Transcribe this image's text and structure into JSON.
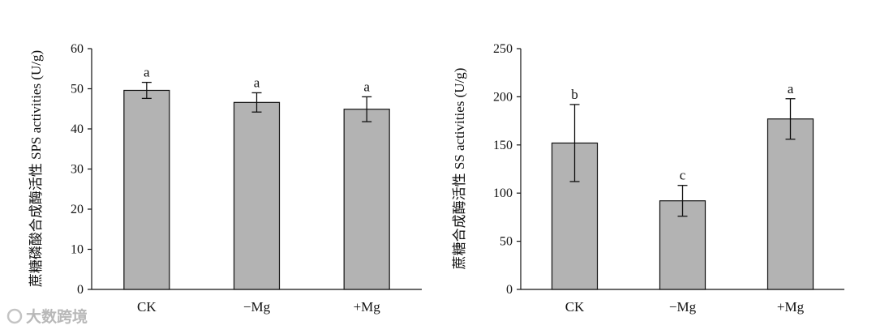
{
  "chart_data": [
    {
      "type": "bar",
      "ylabel": "蔗糖磷酸合成酶活性  SPS activities (U/g)",
      "ylim": [
        0,
        60
      ],
      "yticks": [
        0,
        10,
        20,
        30,
        40,
        50,
        60
      ],
      "categories": [
        "CK",
        "−Mg",
        "+Mg"
      ],
      "values": [
        49.6,
        46.6,
        44.9
      ],
      "errors": [
        2.0,
        2.4,
        3.1
      ],
      "significance": [
        "a",
        "a",
        "a"
      ],
      "bar_color": "#b3b3b3"
    },
    {
      "type": "bar",
      "ylabel": "蔗糖合成酶活性 SS activities (U/g)",
      "ylim": [
        0,
        250
      ],
      "yticks": [
        0,
        50,
        100,
        150,
        200,
        250
      ],
      "categories": [
        "CK",
        "−Mg",
        "+Mg"
      ],
      "values": [
        152,
        92,
        177
      ],
      "errors": [
        40,
        16,
        21
      ],
      "significance": [
        "b",
        "c",
        "a"
      ],
      "bar_color": "#b3b3b3"
    }
  ],
  "watermark": "大数跨境"
}
